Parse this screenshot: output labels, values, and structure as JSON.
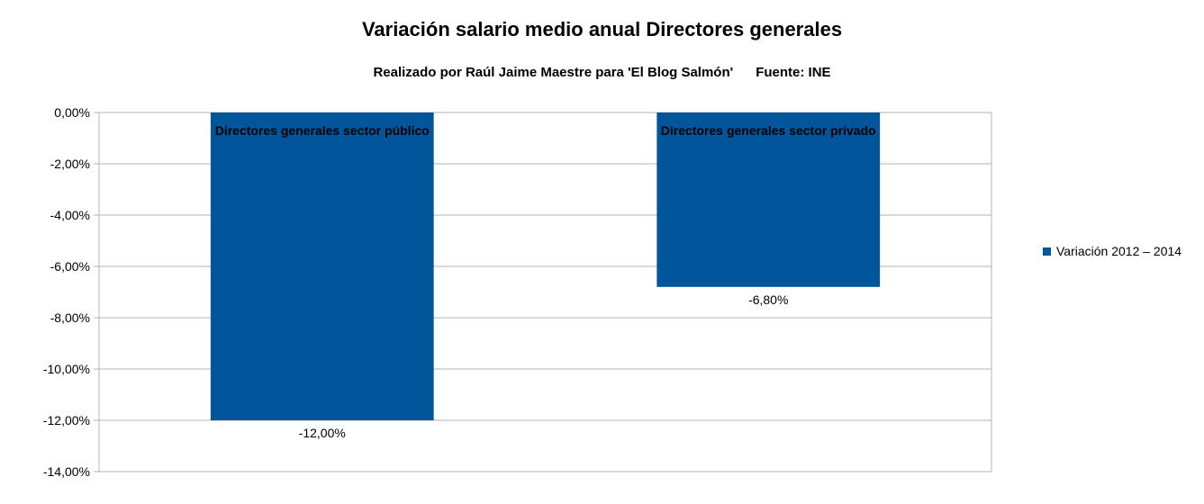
{
  "chart_data": {
    "type": "bar",
    "title": "Variación salario medio anual Directores generales",
    "subtitle": "Realizado por Raúl Jaime Maestre para 'El Blog Salmón'      Fuente: INE",
    "categories": [
      "Directores generales sector público",
      "Directores generales sector privado"
    ],
    "series": [
      {
        "name": "Variación 2012 – 2014",
        "values": [
          -12.0,
          -6.8
        ],
        "data_labels": [
          "-12,00%",
          "-6,80%"
        ],
        "color": "#00559b"
      }
    ],
    "xlabel": "",
    "ylabel": "",
    "ylim": [
      -14,
      0
    ],
    "y_ticks": [
      0,
      -2,
      -4,
      -6,
      -8,
      -10,
      -12,
      -14
    ],
    "y_tick_labels": [
      "0,00%",
      "-2,00%",
      "-4,00%",
      "-6,00%",
      "-8,00%",
      "-10,00%",
      "-12,00%",
      "-14,00%"
    ],
    "grid": true,
    "legend_position": "right",
    "category_label_position": "inside-top"
  }
}
